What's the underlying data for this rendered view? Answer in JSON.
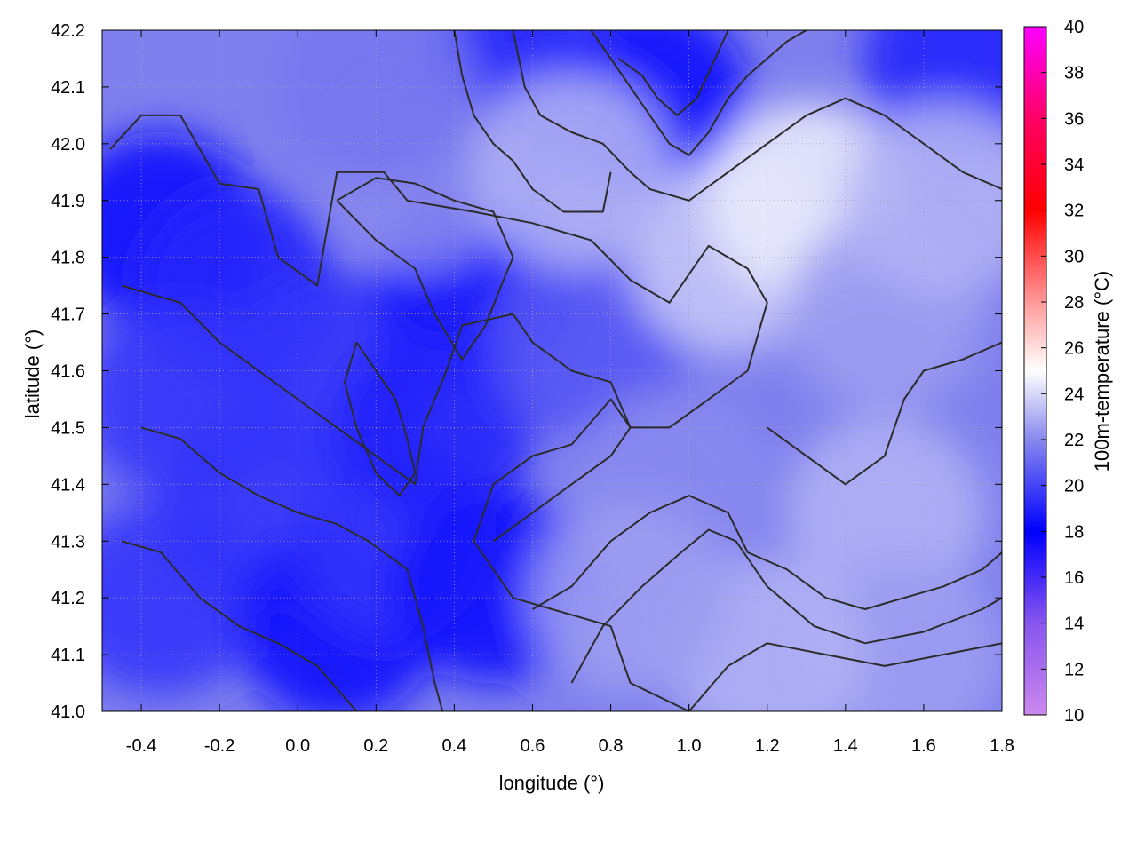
{
  "chart_data": {
    "type": "heatmap",
    "title": "",
    "xlabel": "longitude (°)",
    "ylabel": "latitude (°)",
    "colorbar_label": "100m-temperature (°C)",
    "xlim": [
      -0.5,
      1.8
    ],
    "ylim": [
      41.0,
      42.2
    ],
    "xticks": [
      -0.4,
      -0.2,
      0.0,
      0.2,
      0.4,
      0.6,
      0.8,
      1.0,
      1.2,
      1.4,
      1.6,
      1.8
    ],
    "xtick_labels": [
      "-0.4",
      "-0.2",
      "0.0",
      "0.2",
      "0.4",
      "0.6",
      "0.8",
      "1.0",
      "1.2",
      "1.4",
      "1.6",
      "1.8"
    ],
    "yticks": [
      41.0,
      41.1,
      41.2,
      41.3,
      41.4,
      41.5,
      41.6,
      41.7,
      41.8,
      41.9,
      42.0,
      42.1,
      42.2
    ],
    "ytick_labels": [
      "41.0",
      "41.1",
      "41.2",
      "41.3",
      "41.4",
      "41.5",
      "41.6",
      "41.7",
      "41.8",
      "41.9",
      "42.0",
      "42.1",
      "42.2"
    ],
    "colorbar_range": [
      10,
      40
    ],
    "colorbar_ticks": [
      10,
      12,
      14,
      16,
      18,
      20,
      22,
      24,
      26,
      28,
      30,
      32,
      34,
      36,
      38,
      40
    ],
    "colorbar_tick_labels": [
      "10",
      "12",
      "14",
      "16",
      "18",
      "20",
      "22",
      "24",
      "26",
      "28",
      "30",
      "32",
      "34",
      "36",
      "38",
      "40"
    ],
    "colormap": [
      {
        "value": 10,
        "color": "#cc88ee"
      },
      {
        "value": 14,
        "color": "#8855ee"
      },
      {
        "value": 18,
        "color": "#0000ff"
      },
      {
        "value": 22,
        "color": "#8888ee"
      },
      {
        "value": 25,
        "color": "#ffffff"
      },
      {
        "value": 28,
        "color": "#ff9999"
      },
      {
        "value": 32,
        "color": "#ff0000"
      },
      {
        "value": 36,
        "color": "#ff0066"
      },
      {
        "value": 40,
        "color": "#ff00ff"
      }
    ],
    "grid": true,
    "temperature_regions": [
      {
        "lon": -0.35,
        "lat": 41.85,
        "temp": 18.5
      },
      {
        "lon": -0.15,
        "lat": 41.75,
        "temp": 19
      },
      {
        "lon": -0.3,
        "lat": 41.55,
        "temp": 19.5
      },
      {
        "lon": -0.1,
        "lat": 41.35,
        "temp": 19.5
      },
      {
        "lon": -0.35,
        "lat": 41.2,
        "temp": 19.5
      },
      {
        "lon": 0.1,
        "lat": 41.6,
        "temp": 19.5
      },
      {
        "lon": 0.1,
        "lat": 41.15,
        "temp": 18.5
      },
      {
        "lon": 0.25,
        "lat": 41.3,
        "temp": 19.5
      },
      {
        "lon": 0.45,
        "lat": 41.75,
        "temp": 18.5
      },
      {
        "lon": 0.35,
        "lat": 41.5,
        "temp": 19
      },
      {
        "lon": 0.5,
        "lat": 41.22,
        "temp": 18.5
      },
      {
        "lon": 0.75,
        "lat": 41.65,
        "temp": 20.5
      },
      {
        "lon": 0.95,
        "lat": 41.4,
        "temp": 22
      },
      {
        "lon": 0.9,
        "lat": 42.08,
        "temp": 17.5
      },
      {
        "lon": 0.55,
        "lat": 42.1,
        "temp": 19
      },
      {
        "lon": 1.7,
        "lat": 42.15,
        "temp": 19
      },
      {
        "lon": 1.1,
        "lat": 41.8,
        "temp": 23.5
      },
      {
        "lon": 1.3,
        "lat": 41.9,
        "temp": 24.5
      },
      {
        "lon": 1.5,
        "lat": 41.7,
        "temp": 22.5
      },
      {
        "lon": 1.5,
        "lat": 41.35,
        "temp": 23
      },
      {
        "lon": 1.55,
        "lat": 41.1,
        "temp": 22.5
      },
      {
        "lon": 1.2,
        "lat": 41.1,
        "temp": 23
      },
      {
        "lon": 0.3,
        "lat": 41.95,
        "temp": 22
      },
      {
        "lon": 0.7,
        "lat": 41.95,
        "temp": 23
      },
      {
        "lon": 0.85,
        "lat": 41.2,
        "temp": 22.5
      },
      {
        "lon": 0.2,
        "lat": 42.1,
        "temp": 21.5
      },
      {
        "lon": 1.65,
        "lat": 41.9,
        "temp": 23
      }
    ],
    "contours": [
      [
        [
          -0.48,
          41.99
        ],
        [
          -0.4,
          42.05
        ],
        [
          -0.3,
          42.05
        ],
        [
          -0.2,
          41.93
        ],
        [
          -0.1,
          41.92
        ],
        [
          -0.05,
          41.8
        ],
        [
          0.05,
          41.75
        ],
        [
          0.1,
          41.95
        ],
        [
          0.22,
          41.95
        ],
        [
          0.28,
          41.9
        ],
        [
          0.45,
          41.88
        ],
        [
          0.6,
          41.86
        ],
        [
          0.75,
          41.83
        ],
        [
          0.85,
          41.76
        ],
        [
          0.95,
          41.72
        ],
        [
          1.05,
          41.82
        ],
        [
          1.15,
          41.78
        ],
        [
          1.2,
          41.72
        ],
        [
          1.15,
          41.6
        ],
        [
          1.05,
          41.55
        ],
        [
          0.95,
          41.5
        ],
        [
          0.85,
          41.5
        ],
        [
          0.8,
          41.55
        ],
        [
          0.7,
          41.47
        ],
        [
          0.6,
          41.45
        ],
        [
          0.5,
          41.4
        ],
        [
          0.45,
          41.3
        ],
        [
          0.55,
          41.2
        ],
        [
          0.65,
          41.18
        ],
        [
          0.8,
          41.15
        ],
        [
          0.85,
          41.05
        ],
        [
          1.0,
          41.0
        ]
      ],
      [
        [
          -0.45,
          41.75
        ],
        [
          -0.3,
          41.72
        ],
        [
          -0.2,
          41.65
        ],
        [
          -0.1,
          41.6
        ],
        [
          0.0,
          41.55
        ],
        [
          0.1,
          41.5
        ],
        [
          0.2,
          41.45
        ],
        [
          0.3,
          41.4
        ],
        [
          0.32,
          41.5
        ],
        [
          0.38,
          41.6
        ],
        [
          0.42,
          41.68
        ],
        [
          0.55,
          41.7
        ],
        [
          0.6,
          41.65
        ],
        [
          0.7,
          41.6
        ],
        [
          0.8,
          41.58
        ],
        [
          0.85,
          41.5
        ],
        [
          0.8,
          41.45
        ],
        [
          0.7,
          41.4
        ],
        [
          0.6,
          41.35
        ],
        [
          0.5,
          41.3
        ]
      ],
      [
        [
          -0.4,
          41.5
        ],
        [
          -0.3,
          41.48
        ],
        [
          -0.2,
          41.42
        ],
        [
          -0.1,
          41.38
        ],
        [
          0.0,
          41.35
        ],
        [
          0.1,
          41.33
        ],
        [
          0.18,
          41.3
        ],
        [
          0.28,
          41.25
        ],
        [
          0.32,
          41.15
        ],
        [
          0.35,
          41.05
        ],
        [
          0.37,
          41.0
        ]
      ],
      [
        [
          -0.45,
          41.3
        ],
        [
          -0.35,
          41.28
        ],
        [
          -0.25,
          41.2
        ],
        [
          -0.15,
          41.15
        ],
        [
          -0.05,
          41.12
        ],
        [
          0.05,
          41.08
        ],
        [
          0.15,
          41.0
        ]
      ],
      [
        [
          0.1,
          41.9
        ],
        [
          0.2,
          41.83
        ],
        [
          0.3,
          41.78
        ],
        [
          0.35,
          41.7
        ],
        [
          0.42,
          41.62
        ],
        [
          0.48,
          41.68
        ],
        [
          0.52,
          41.75
        ],
        [
          0.55,
          41.8
        ],
        [
          0.5,
          41.88
        ],
        [
          0.4,
          41.9
        ],
        [
          0.3,
          41.93
        ],
        [
          0.2,
          41.94
        ],
        [
          0.1,
          41.9
        ]
      ],
      [
        [
          0.6,
          41.18
        ],
        [
          0.7,
          41.22
        ],
        [
          0.8,
          41.3
        ],
        [
          0.9,
          41.35
        ],
        [
          1.0,
          41.38
        ],
        [
          1.1,
          41.35
        ],
        [
          1.15,
          41.28
        ],
        [
          1.25,
          41.25
        ],
        [
          1.35,
          41.2
        ],
        [
          1.45,
          41.18
        ],
        [
          1.55,
          41.2
        ],
        [
          1.65,
          41.22
        ],
        [
          1.75,
          41.25
        ],
        [
          1.8,
          41.28
        ]
      ],
      [
        [
          0.7,
          41.05
        ],
        [
          0.78,
          41.15
        ],
        [
          0.88,
          41.22
        ],
        [
          0.98,
          41.28
        ],
        [
          1.05,
          41.32
        ],
        [
          1.12,
          41.3
        ],
        [
          1.2,
          41.22
        ],
        [
          1.32,
          41.15
        ],
        [
          1.45,
          41.12
        ],
        [
          1.6,
          41.14
        ],
        [
          1.75,
          41.18
        ],
        [
          1.8,
          41.2
        ]
      ],
      [
        [
          1.0,
          41.0
        ],
        [
          1.1,
          41.08
        ],
        [
          1.2,
          41.12
        ],
        [
          1.35,
          41.1
        ],
        [
          1.5,
          41.08
        ],
        [
          1.65,
          41.1
        ],
        [
          1.8,
          41.12
        ]
      ],
      [
        [
          0.75,
          42.2
        ],
        [
          0.8,
          42.15
        ],
        [
          0.85,
          42.1
        ],
        [
          0.9,
          42.05
        ],
        [
          0.95,
          42.0
        ],
        [
          1.0,
          41.98
        ],
        [
          1.05,
          42.02
        ],
        [
          1.1,
          42.08
        ],
        [
          1.15,
          42.12
        ],
        [
          1.25,
          42.18
        ],
        [
          1.3,
          42.2
        ]
      ],
      [
        [
          0.82,
          42.15
        ],
        [
          0.88,
          42.12
        ],
        [
          0.92,
          42.08
        ],
        [
          0.97,
          42.05
        ],
        [
          1.02,
          42.08
        ],
        [
          1.06,
          42.14
        ],
        [
          1.1,
          42.2
        ]
      ],
      [
        [
          0.55,
          42.2
        ],
        [
          0.58,
          42.1
        ],
        [
          0.62,
          42.05
        ],
        [
          0.7,
          42.02
        ],
        [
          0.78,
          42.0
        ],
        [
          0.85,
          41.95
        ],
        [
          0.9,
          41.92
        ],
        [
          1.0,
          41.9
        ],
        [
          1.1,
          41.95
        ],
        [
          1.2,
          42.0
        ],
        [
          1.3,
          42.05
        ],
        [
          1.4,
          42.08
        ],
        [
          1.5,
          42.05
        ],
        [
          1.6,
          42.0
        ],
        [
          1.7,
          41.95
        ],
        [
          1.8,
          41.92
        ]
      ],
      [
        [
          1.2,
          41.5
        ],
        [
          1.3,
          41.45
        ],
        [
          1.4,
          41.4
        ],
        [
          1.5,
          41.45
        ],
        [
          1.55,
          41.55
        ],
        [
          1.6,
          41.6
        ],
        [
          1.7,
          41.62
        ],
        [
          1.8,
          41.65
        ]
      ],
      [
        [
          0.4,
          42.2
        ],
        [
          0.42,
          42.12
        ],
        [
          0.45,
          42.05
        ],
        [
          0.5,
          42.0
        ],
        [
          0.55,
          41.97
        ],
        [
          0.6,
          41.92
        ],
        [
          0.68,
          41.88
        ],
        [
          0.78,
          41.88
        ],
        [
          0.8,
          41.95
        ]
      ],
      [
        [
          0.15,
          41.65
        ],
        [
          0.2,
          41.6
        ],
        [
          0.25,
          41.55
        ],
        [
          0.28,
          41.48
        ],
        [
          0.3,
          41.42
        ],
        [
          0.26,
          41.38
        ],
        [
          0.2,
          41.42
        ],
        [
          0.15,
          41.5
        ],
        [
          0.12,
          41.58
        ],
        [
          0.15,
          41.65
        ]
      ]
    ]
  }
}
